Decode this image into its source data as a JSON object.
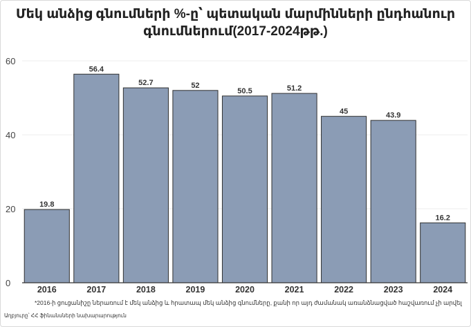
{
  "chart_data": {
    "type": "bar",
    "title_line1": "Մեկ անձից գնումների %-ը՝ պետական մարմինների ընդհանուր",
    "title_line2": "գնումներում(2017-2024թթ.)",
    "categories": [
      "2016",
      "2017",
      "2018",
      "2019",
      "2020",
      "2021",
      "2022",
      "2023",
      "2024"
    ],
    "values": [
      19.8,
      56.4,
      52.7,
      52,
      50.5,
      51.2,
      45,
      43.9,
      16.2
    ],
    "value_labels": [
      "19.8",
      "56.4",
      "52.7",
      "52",
      "50.5",
      "51.2",
      "45",
      "43.9",
      "16.2"
    ],
    "yticks": [
      "0",
      "20",
      "40",
      "60"
    ],
    "ylim": [
      0,
      60
    ],
    "grid": true,
    "bar_color": "#8b9cb5",
    "bar_edge_color": "#2f2f2f",
    "footnote": "*2016-ի ցուցանիշը ներառում է մեկ անձից և հրատապ մեկ անձից գնումները, քանի որ այդ ժամանակ առանձնացված հաշվառում չի արվել",
    "source": "Աղբյուրը՝ ՀՀ ֆինանսների նախարարություն"
  }
}
